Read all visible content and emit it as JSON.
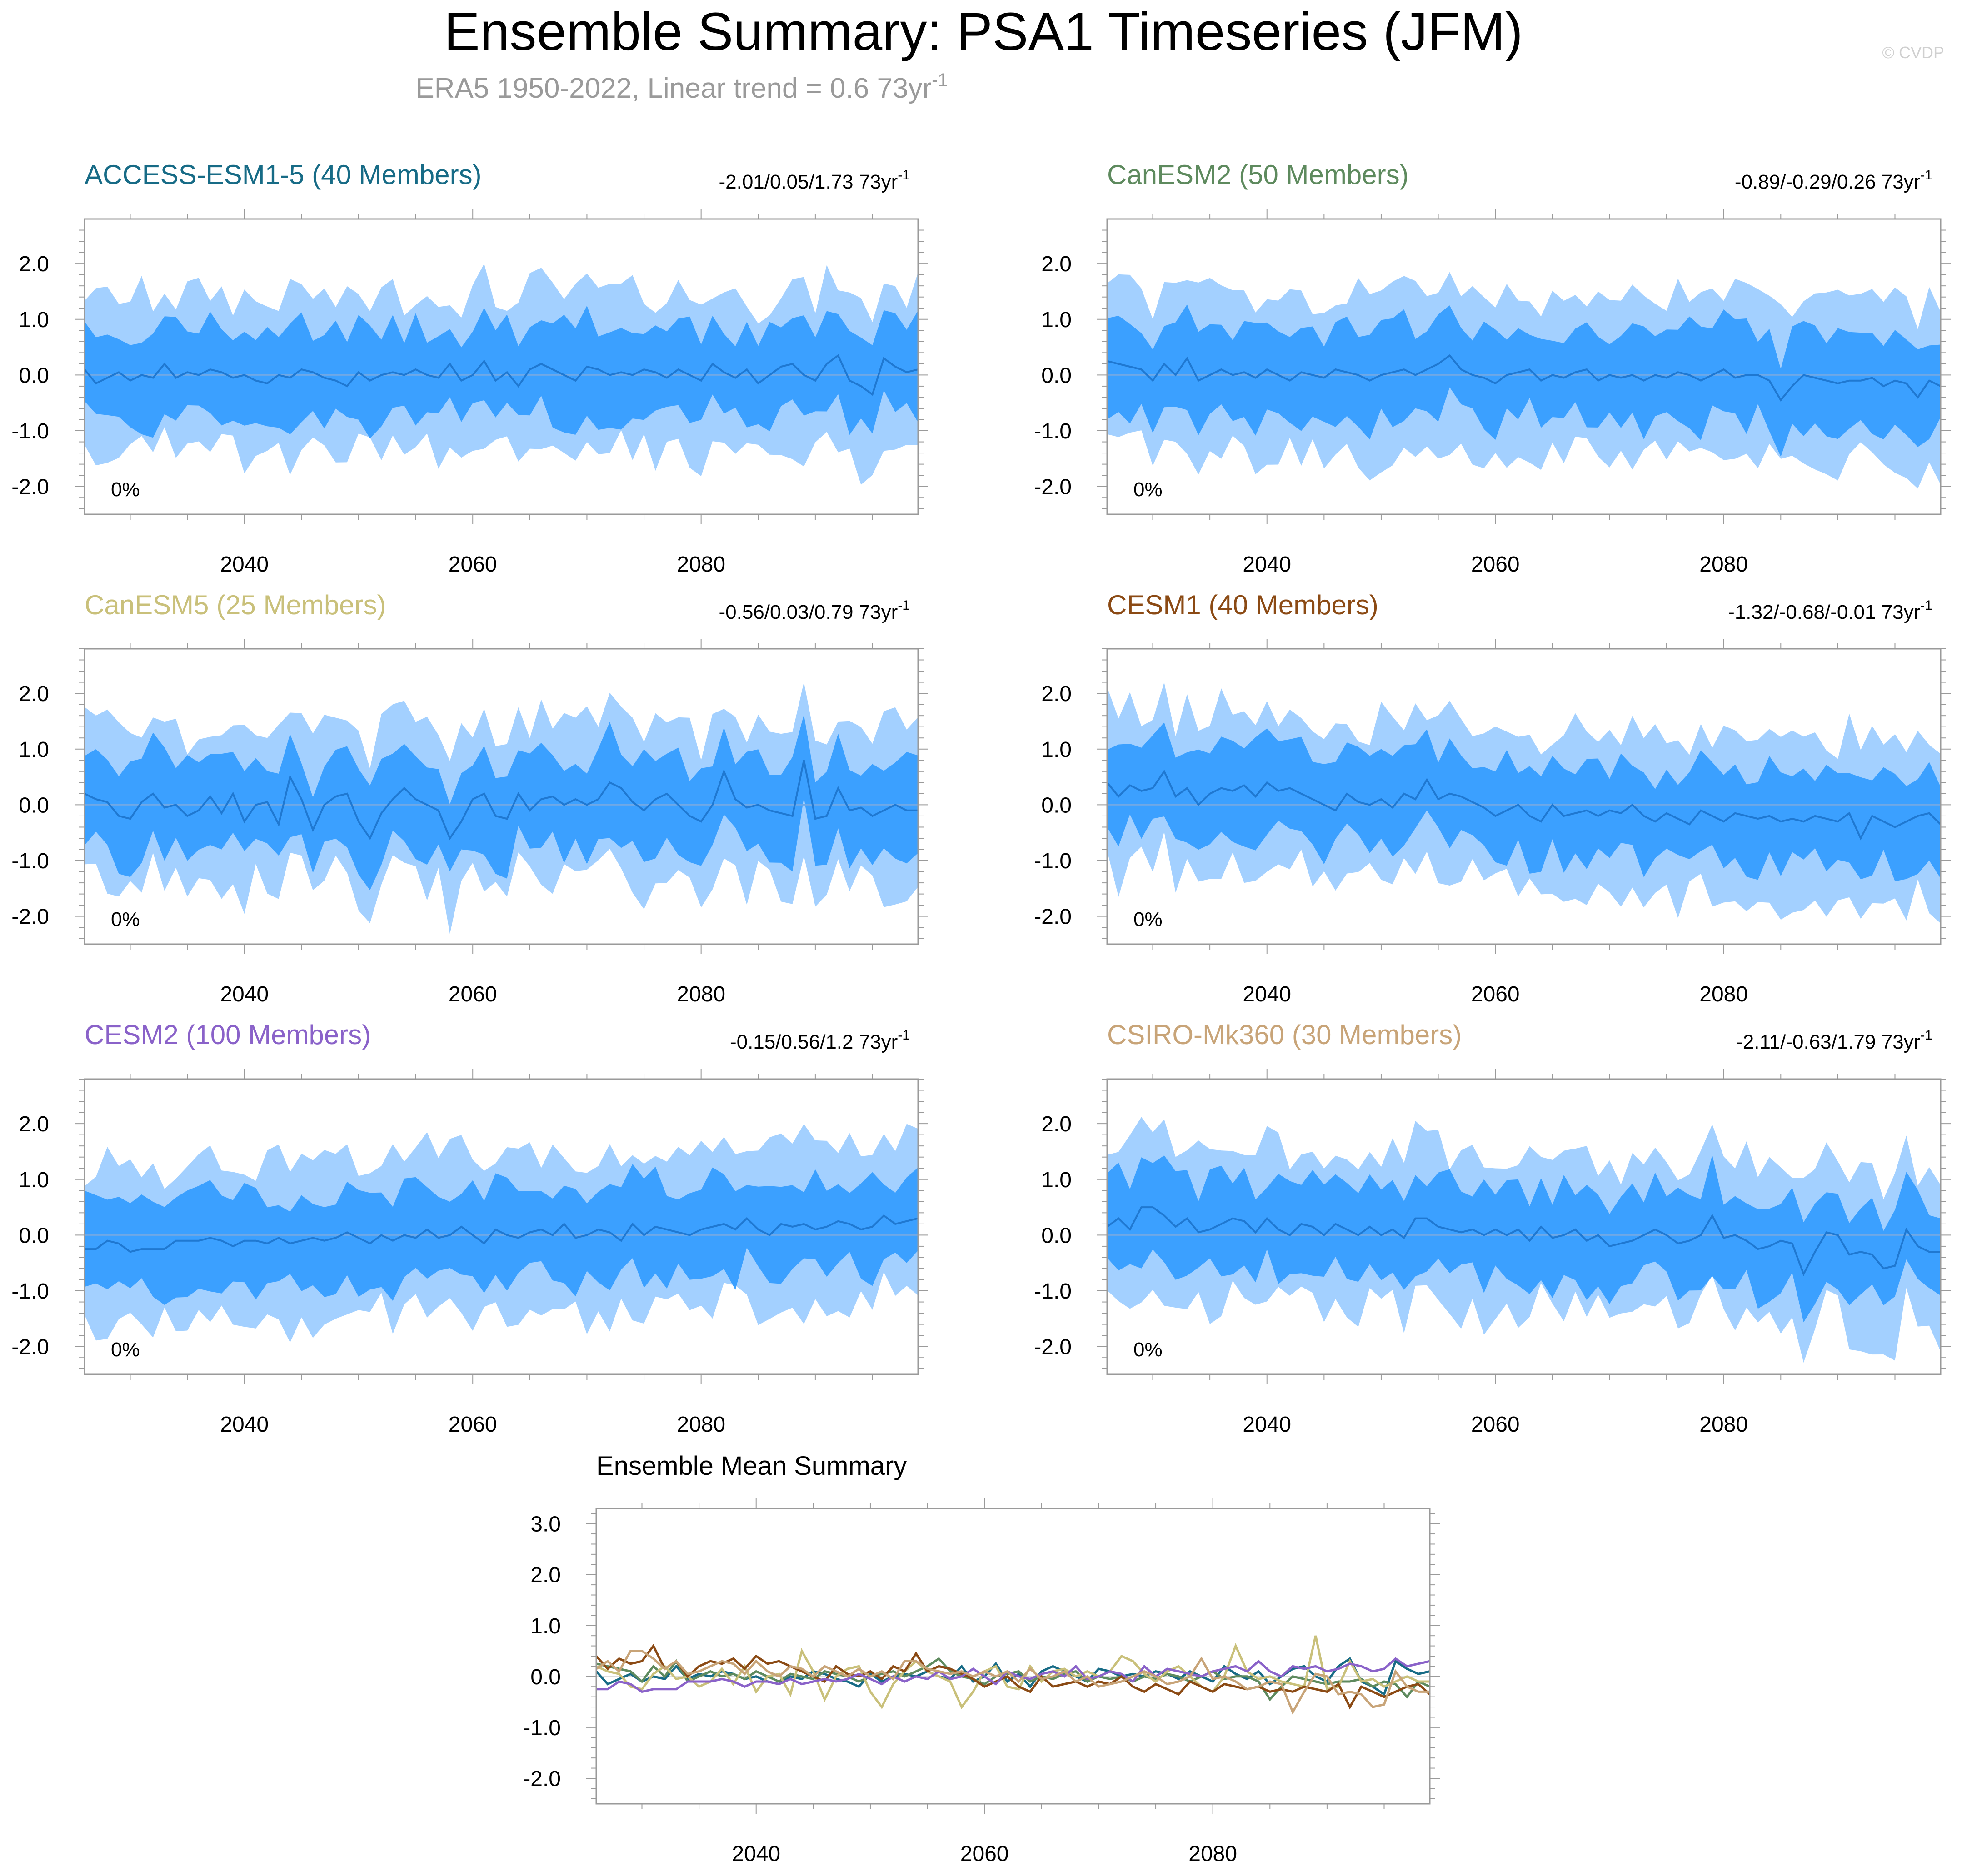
{
  "header": {
    "title": "Ensemble Summary: PSA1 Timeseries (JFM)",
    "subtitle": "ERA5 1950-2022, Linear trend = 0.6 73yr",
    "subtitle_sup": "-1",
    "watermark": "© CVDP"
  },
  "colors": {
    "band_outer": "#a3d0ff",
    "band_inner": "#3ba0ff",
    "mean_line": "#1f78d1",
    "zero_line": "#6fa8e6",
    "axis": "#9a9a9a"
  },
  "chart_data": [
    {
      "type": "area",
      "title": "ACCESS-ESM1-5 (40 Members)",
      "title_color": "#176b86",
      "trend_label": "-2.01/0.05/1.73 73yr",
      "trend_sup": "-1",
      "percent_label": "0%",
      "xlim": [
        2026,
        2099
      ],
      "ylim": [
        -2.5,
        2.8
      ],
      "xticks": [
        "2040",
        "2060",
        "2080"
      ],
      "yticks": [
        "2.0",
        "1.0",
        "0.0",
        "-1.0",
        "-2.0"
      ],
      "ytick_values": [
        2,
        1,
        0,
        -1,
        -2
      ],
      "legend": "none",
      "x_start": 2026,
      "mean": [
        0.1,
        -0.15,
        -0.05,
        0.05,
        -0.1,
        0.0,
        -0.05,
        0.2,
        -0.05,
        0.05,
        0.0,
        0.1,
        0.05,
        -0.05,
        0.0,
        -0.1,
        -0.15,
        0.0,
        -0.05,
        0.1,
        0.05,
        -0.05,
        -0.1,
        -0.2,
        0.05,
        -0.1,
        0.0,
        0.05,
        0.0,
        0.1,
        0.0,
        -0.05,
        0.2,
        -0.1,
        0.0,
        0.25,
        -0.1,
        0.05,
        -0.2,
        0.1,
        0.2,
        0.1,
        0.0,
        -0.1,
        0.15,
        0.1,
        0.0,
        0.05,
        0.0,
        0.1,
        0.05,
        -0.05,
        0.1,
        0.0,
        -0.1,
        0.2,
        0.05,
        -0.05,
        0.1,
        -0.15,
        0.0,
        0.15,
        0.2,
        0.0,
        -0.1,
        0.2,
        0.35,
        -0.1,
        -0.2,
        -0.35,
        0.3,
        0.15,
        0.05,
        0.1
      ]
    },
    {
      "type": "area",
      "title": "CanESM2 (50 Members)",
      "title_color": "#5e8a5e",
      "trend_label": "-0.89/-0.29/0.26 73yr",
      "trend_sup": "-1",
      "percent_label": "0%",
      "xlim": [
        2026,
        2099
      ],
      "ylim": [
        -2.5,
        2.8
      ],
      "xticks": [
        "2040",
        "2060",
        "2080"
      ],
      "yticks": [
        "2.0",
        "1.0",
        "0.0",
        "-1.0",
        "-2.0"
      ],
      "ytick_values": [
        2,
        1,
        0,
        -1,
        -2
      ],
      "legend": "none",
      "x_start": 2026,
      "mean": [
        0.25,
        0.2,
        0.15,
        0.1,
        -0.1,
        0.2,
        0.0,
        0.3,
        -0.1,
        0.0,
        0.1,
        0.0,
        0.05,
        -0.05,
        0.1,
        0.0,
        -0.1,
        0.05,
        0.0,
        -0.05,
        0.1,
        0.05,
        0.0,
        -0.1,
        0.0,
        0.05,
        0.1,
        0.0,
        0.1,
        0.2,
        0.35,
        0.1,
        0.0,
        -0.05,
        -0.15,
        0.0,
        0.05,
        0.1,
        -0.1,
        0.0,
        -0.05,
        0.05,
        0.1,
        -0.1,
        0.0,
        -0.05,
        0.0,
        -0.1,
        0.0,
        -0.05,
        0.05,
        0.0,
        -0.1,
        0.0,
        0.1,
        -0.05,
        0.0,
        0.0,
        -0.1,
        -0.45,
        -0.2,
        0.0,
        -0.05,
        -0.1,
        -0.15,
        -0.1,
        -0.1,
        -0.05,
        -0.2,
        -0.1,
        -0.15,
        -0.4,
        -0.1,
        -0.2
      ]
    },
    {
      "type": "area",
      "title": "CanESM5 (25 Members)",
      "title_color": "#c9c07a",
      "trend_label": "-0.56/0.03/0.79 73yr",
      "trend_sup": "-1",
      "percent_label": "0%",
      "xlim": [
        2026,
        2099
      ],
      "ylim": [
        -2.5,
        2.8
      ],
      "xticks": [
        "2040",
        "2060",
        "2080"
      ],
      "yticks": [
        "2.0",
        "1.0",
        "0.0",
        "-1.0",
        "-2.0"
      ],
      "ytick_values": [
        2,
        1,
        0,
        -1,
        -2
      ],
      "legend": "none",
      "x_start": 2026,
      "mean": [
        0.2,
        0.1,
        0.05,
        -0.2,
        -0.25,
        0.05,
        0.2,
        -0.05,
        0.0,
        -0.2,
        -0.1,
        0.15,
        -0.15,
        0.2,
        -0.3,
        0.0,
        0.05,
        -0.35,
        0.5,
        0.1,
        -0.45,
        0.0,
        0.15,
        0.2,
        -0.3,
        -0.6,
        -0.15,
        0.1,
        0.3,
        0.1,
        0.0,
        -0.1,
        -0.6,
        -0.3,
        0.1,
        0.2,
        -0.2,
        -0.25,
        0.2,
        -0.1,
        0.1,
        0.15,
        0.0,
        0.1,
        0.0,
        0.1,
        0.4,
        0.3,
        0.05,
        -0.1,
        0.1,
        0.2,
        0.0,
        -0.2,
        -0.3,
        0.0,
        0.6,
        0.1,
        -0.05,
        0.0,
        -0.1,
        -0.15,
        -0.2,
        0.8,
        -0.25,
        -0.2,
        0.3,
        -0.1,
        -0.05,
        -0.2,
        -0.1,
        0.0,
        -0.1,
        -0.1
      ]
    },
    {
      "type": "area",
      "title": "CESM1 (40 Members)",
      "title_color": "#8b4a14",
      "trend_label": "-1.32/-0.68/-0.01 73yr",
      "trend_sup": "-1",
      "percent_label": "0%",
      "xlim": [
        2026,
        2099
      ],
      "ylim": [
        -2.5,
        2.8
      ],
      "xticks": [
        "2040",
        "2060",
        "2080"
      ],
      "yticks": [
        "2.0",
        "1.0",
        "0.0",
        "-1.0",
        "-2.0"
      ],
      "ytick_values": [
        2,
        1,
        0,
        -1,
        -2
      ],
      "legend": "none",
      "x_start": 2026,
      "mean": [
        0.4,
        0.15,
        0.35,
        0.25,
        0.3,
        0.6,
        0.15,
        0.3,
        0.0,
        0.2,
        0.3,
        0.25,
        0.35,
        0.15,
        0.4,
        0.25,
        0.3,
        0.2,
        0.1,
        0.0,
        -0.1,
        0.2,
        0.05,
        0.0,
        0.1,
        -0.05,
        0.2,
        0.1,
        0.45,
        0.1,
        0.2,
        0.15,
        0.05,
        -0.05,
        -0.2,
        -0.1,
        0.0,
        -0.2,
        -0.3,
        0.0,
        -0.2,
        -0.15,
        -0.1,
        -0.2,
        -0.1,
        -0.15,
        0.0,
        -0.2,
        -0.3,
        -0.15,
        -0.25,
        -0.35,
        -0.1,
        -0.2,
        -0.3,
        -0.15,
        -0.2,
        -0.25,
        -0.2,
        -0.3,
        -0.25,
        -0.3,
        -0.2,
        -0.25,
        -0.3,
        -0.15,
        -0.6,
        -0.2,
        -0.3,
        -0.4,
        -0.3,
        -0.2,
        -0.15,
        -0.35
      ]
    },
    {
      "type": "area",
      "title": "CESM2 (100 Members)",
      "title_color": "#8a62c9",
      "trend_label": "-0.15/0.56/1.2 73yr",
      "trend_sup": "-1",
      "percent_label": "0%",
      "xlim": [
        2026,
        2099
      ],
      "ylim": [
        -2.5,
        2.8
      ],
      "xticks": [
        "2040",
        "2060",
        "2080"
      ],
      "yticks": [
        "2.0",
        "1.0",
        "0.0",
        "-1.0",
        "-2.0"
      ],
      "ytick_values": [
        2,
        1,
        0,
        -1,
        -2
      ],
      "legend": "none",
      "x_start": 2026,
      "mean": [
        -0.25,
        -0.25,
        -0.1,
        -0.15,
        -0.3,
        -0.25,
        -0.25,
        -0.25,
        -0.1,
        -0.1,
        -0.1,
        -0.05,
        -0.1,
        -0.2,
        -0.1,
        -0.1,
        -0.15,
        -0.05,
        -0.15,
        -0.1,
        -0.05,
        -0.1,
        -0.05,
        0.05,
        -0.05,
        -0.15,
        0.0,
        -0.1,
        0.0,
        -0.05,
        0.1,
        -0.05,
        0.0,
        0.15,
        0.0,
        -0.15,
        0.1,
        0.0,
        -0.05,
        0.05,
        0.1,
        0.0,
        0.2,
        -0.05,
        0.0,
        0.1,
        0.05,
        -0.1,
        0.2,
        0.0,
        0.15,
        0.1,
        0.05,
        0.0,
        0.1,
        0.15,
        0.2,
        0.1,
        0.3,
        0.1,
        0.0,
        0.2,
        0.15,
        0.2,
        0.1,
        0.15,
        0.25,
        0.2,
        0.1,
        0.15,
        0.35,
        0.2,
        0.25,
        0.3
      ]
    },
    {
      "type": "area",
      "title": "CSIRO-Mk360 (30 Members)",
      "title_color": "#c8a478",
      "trend_label": "-2.11/-0.63/1.79 73yr",
      "trend_sup": "-1",
      "percent_label": "0%",
      "xlim": [
        2026,
        2099
      ],
      "ylim": [
        -2.5,
        2.8
      ],
      "xticks": [
        "2040",
        "2060",
        "2080"
      ],
      "yticks": [
        "2.0",
        "1.0",
        "0.0",
        "-1.0",
        "-2.0"
      ],
      "ytick_values": [
        2,
        1,
        0,
        -1,
        -2
      ],
      "legend": "none",
      "x_start": 2026,
      "mean": [
        0.15,
        0.3,
        0.1,
        0.5,
        0.5,
        0.35,
        0.15,
        0.3,
        0.05,
        0.1,
        0.2,
        0.3,
        0.25,
        0.05,
        0.3,
        0.1,
        0.0,
        0.2,
        0.15,
        0.0,
        0.2,
        0.1,
        0.0,
        0.15,
        0.0,
        0.1,
        -0.05,
        0.3,
        0.3,
        0.15,
        0.1,
        0.05,
        0.1,
        0.0,
        0.1,
        0.0,
        0.1,
        -0.1,
        0.15,
        -0.05,
        0.0,
        0.1,
        -0.1,
        0.0,
        -0.2,
        -0.15,
        -0.1,
        0.0,
        0.1,
        0.0,
        -0.15,
        -0.1,
        0.0,
        0.35,
        -0.05,
        0.0,
        -0.1,
        -0.25,
        -0.2,
        -0.1,
        -0.15,
        -0.7,
        -0.3,
        0.05,
        0.0,
        -0.35,
        -0.3,
        -0.35,
        -0.6,
        -0.55,
        0.1,
        -0.2,
        -0.3,
        -0.3
      ]
    },
    {
      "type": "line",
      "title": "Ensemble Mean Summary",
      "xlim": [
        2026,
        2099
      ],
      "ylim": [
        -2.5,
        3.3
      ],
      "xticks": [
        "2040",
        "2060",
        "2080"
      ],
      "yticks": [
        "3.0",
        "2.0",
        "1.0",
        "0.0",
        "-1.0",
        "-2.0"
      ],
      "ytick_values": [
        3,
        2,
        1,
        0,
        -1,
        -2
      ],
      "legend": "none",
      "series": [
        {
          "name": "ACCESS-ESM1-5",
          "ref": 0
        },
        {
          "name": "CanESM2",
          "ref": 1
        },
        {
          "name": "CanESM5",
          "ref": 2
        },
        {
          "name": "CESM1",
          "ref": 3
        },
        {
          "name": "CESM2",
          "ref": 4
        },
        {
          "name": "CSIRO-Mk360",
          "ref": 5
        }
      ]
    }
  ]
}
